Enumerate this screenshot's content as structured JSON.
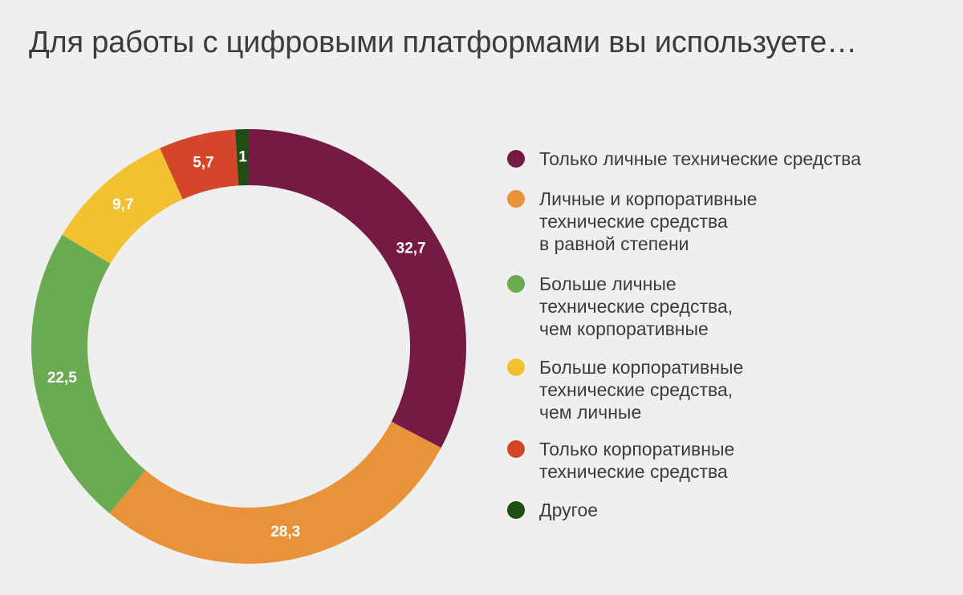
{
  "title": "Для работы с цифровыми платформами вы используете…",
  "chart_data": {
    "type": "pie",
    "variant": "donut",
    "title": "Для работы с цифровыми платформами вы используете…",
    "unit": "%",
    "categories": [
      "Только личные технические средства",
      "Личные и корпоративные технические средства в равной степени",
      "Больше личные технические средства, чем корпоративные",
      "Больше корпоративные технические средства, чем личные",
      "Только корпоративные технические средства",
      "Другое"
    ],
    "values": [
      32.7,
      28.3,
      22.5,
      9.7,
      5.7,
      1
    ],
    "value_labels": [
      "32,7",
      "28,3",
      "22,5",
      "9,7",
      "5,7",
      "1"
    ],
    "colors": [
      "#751a45",
      "#e89339",
      "#6aab51",
      "#f2c130",
      "#d4462a",
      "#1f4d14"
    ],
    "legend_position": "right"
  },
  "legend": [
    {
      "lines": [
        "Только личные технические средства"
      ]
    },
    {
      "lines": [
        "Личные и корпоративные",
        "технические средства",
        "в равной степени"
      ]
    },
    {
      "lines": [
        "Больше личные",
        "технические средства,",
        "чем корпоративные"
      ]
    },
    {
      "lines": [
        "Больше корпоративные",
        "технические средства,",
        "чем личные"
      ]
    },
    {
      "lines": [
        "Только корпоративные",
        "технические средства"
      ]
    },
    {
      "lines": [
        "Другое"
      ]
    }
  ]
}
